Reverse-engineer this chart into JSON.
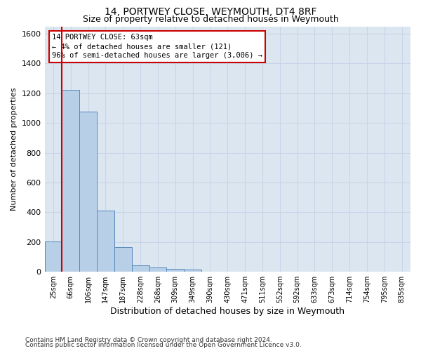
{
  "title1": "14, PORTWEY CLOSE, WEYMOUTH, DT4 8RF",
  "title2": "Size of property relative to detached houses in Weymouth",
  "xlabel": "Distribution of detached houses by size in Weymouth",
  "ylabel": "Number of detached properties",
  "bin_labels": [
    "25sqm",
    "66sqm",
    "106sqm",
    "147sqm",
    "187sqm",
    "228sqm",
    "268sqm",
    "309sqm",
    "349sqm",
    "390sqm",
    "430sqm",
    "471sqm",
    "511sqm",
    "552sqm",
    "592sqm",
    "633sqm",
    "673sqm",
    "714sqm",
    "754sqm",
    "795sqm",
    "835sqm"
  ],
  "bar_heights": [
    205,
    1225,
    1075,
    410,
    165,
    45,
    28,
    18,
    15,
    0,
    0,
    0,
    0,
    0,
    0,
    0,
    0,
    0,
    0,
    0,
    0
  ],
  "bar_color": "#b8cfe8",
  "bar_edge_color": "#5588bb",
  "highlight_color": "#cc0000",
  "annotation_line1": "14 PORTWEY CLOSE: 63sqm",
  "annotation_line2": "← 4% of detached houses are smaller (121)",
  "annotation_line3": "96% of semi-detached houses are larger (3,006) →",
  "annotation_box_color": "#cc0000",
  "ylim": [
    0,
    1650
  ],
  "yticks": [
    0,
    200,
    400,
    600,
    800,
    1000,
    1200,
    1400,
    1600
  ],
  "grid_color": "#c8d4e8",
  "bg_color": "#dce6f0",
  "footer1": "Contains HM Land Registry data © Crown copyright and database right 2024.",
  "footer2": "Contains public sector information licensed under the Open Government Licence v3.0."
}
